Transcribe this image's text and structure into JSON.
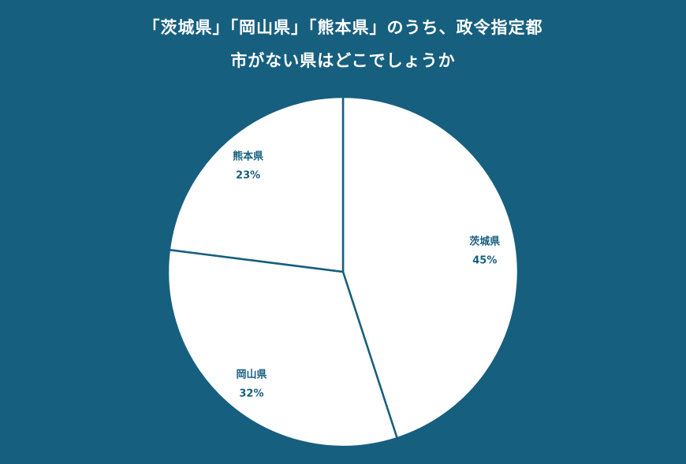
{
  "chart_data": {
    "type": "pie",
    "title_lines": [
      "「茨城県」「岡山県」「熊本県」のうち、政令指定都",
      "市がない県はどこでしょうか"
    ],
    "categories": [
      "茨城県",
      "岡山県",
      "熊本県"
    ],
    "values": [
      45,
      32,
      23
    ],
    "value_labels": [
      "45%",
      "32%",
      "23%"
    ],
    "start": "top",
    "direction": "clockwise",
    "colors": {
      "background": "#175f7f",
      "slice_fill": "#ffffff",
      "slice_stroke": "#175f7f",
      "label": "#175f7f",
      "title": "#ffffff"
    }
  }
}
